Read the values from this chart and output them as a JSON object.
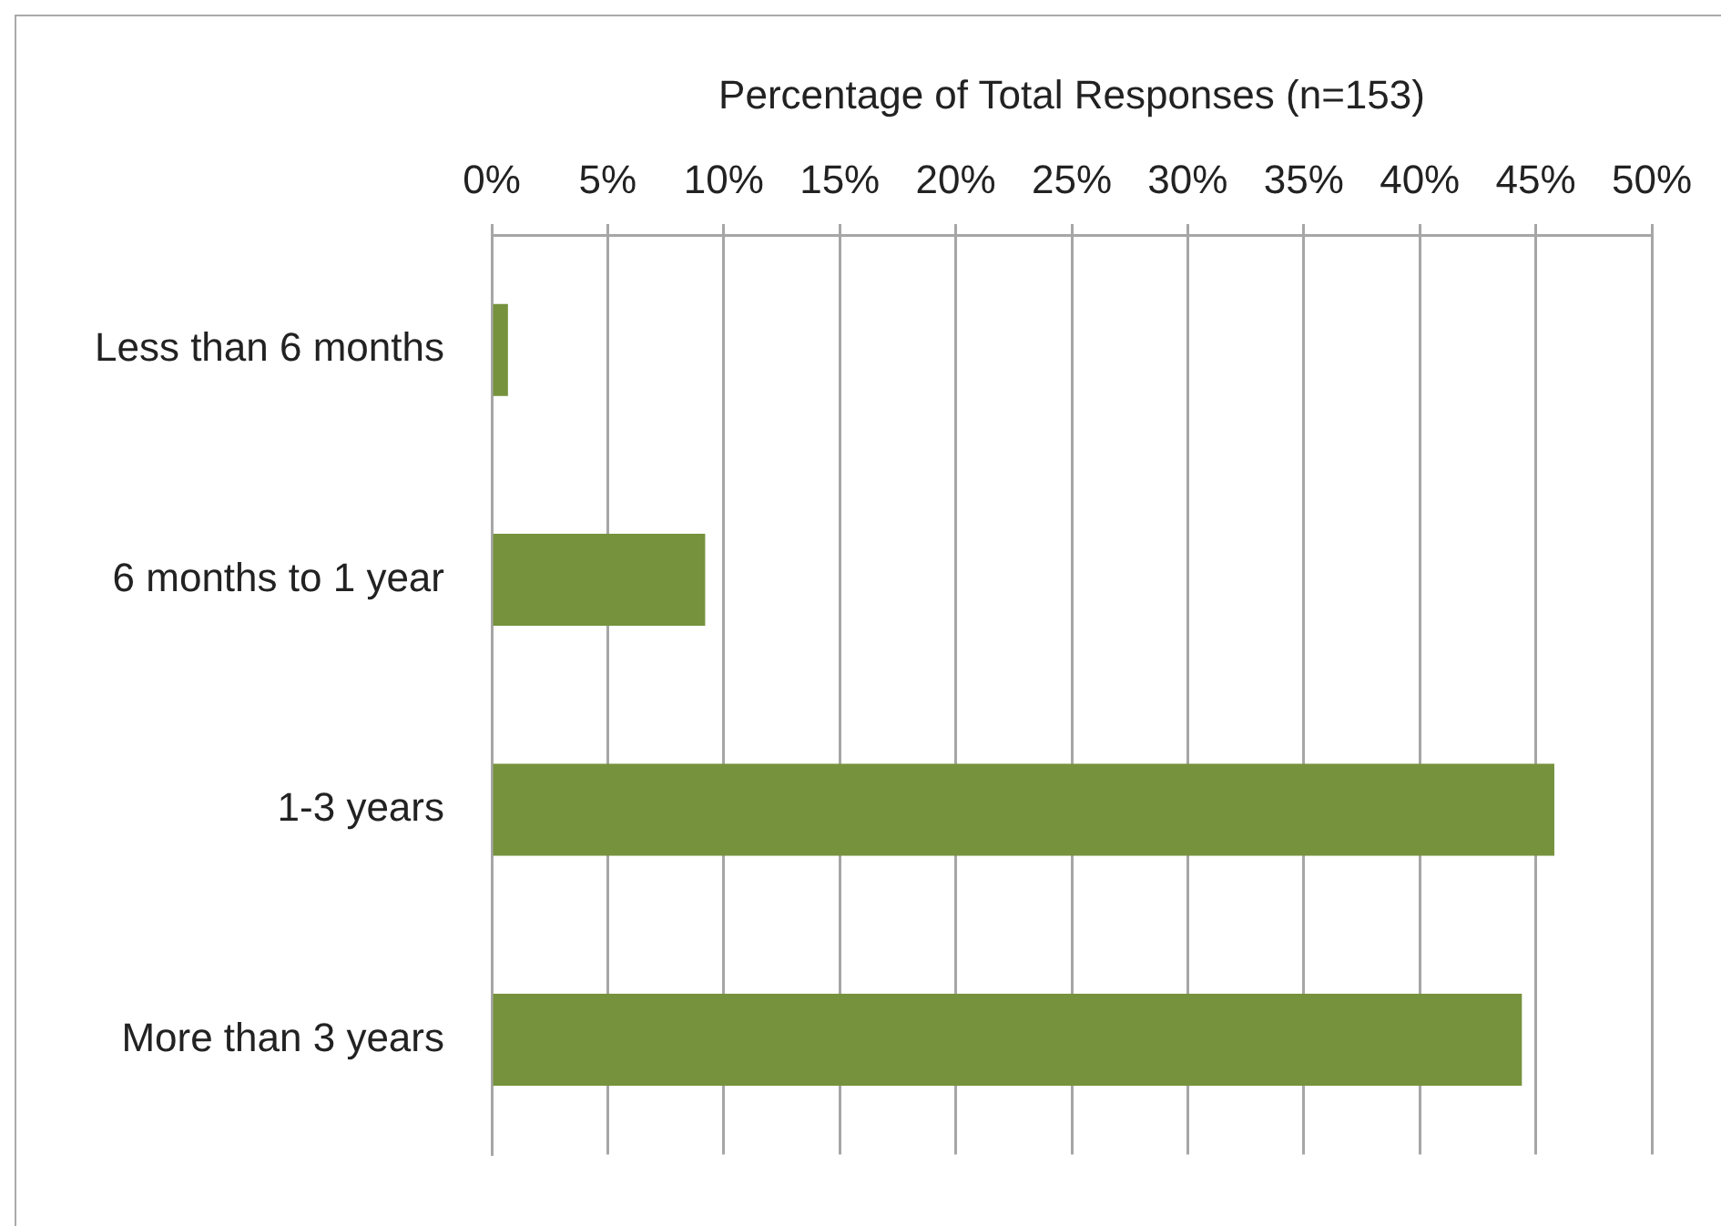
{
  "chart_data": {
    "type": "bar",
    "orientation": "horizontal",
    "xlabel": "Percentage of Total Responses (n=153)",
    "categories": [
      "Less than 6 months",
      "6 months to 1 year",
      "1-3 years",
      "More than 3 years"
    ],
    "values": [
      0.7,
      9.2,
      45.8,
      44.4
    ],
    "color": "#76923c",
    "xlim": [
      0,
      50
    ],
    "xticks": [
      {
        "value": 0,
        "label": "0%"
      },
      {
        "value": 5,
        "label": "5%"
      },
      {
        "value": 10,
        "label": "10%"
      },
      {
        "value": 15,
        "label": "15%"
      },
      {
        "value": 20,
        "label": "20%"
      },
      {
        "value": 25,
        "label": "25%"
      },
      {
        "value": 30,
        "label": "30%"
      },
      {
        "value": 35,
        "label": "35%"
      },
      {
        "value": 40,
        "label": "40%"
      },
      {
        "value": 45,
        "label": "45%"
      },
      {
        "value": 50,
        "label": "50%"
      }
    ],
    "grid": "x"
  }
}
